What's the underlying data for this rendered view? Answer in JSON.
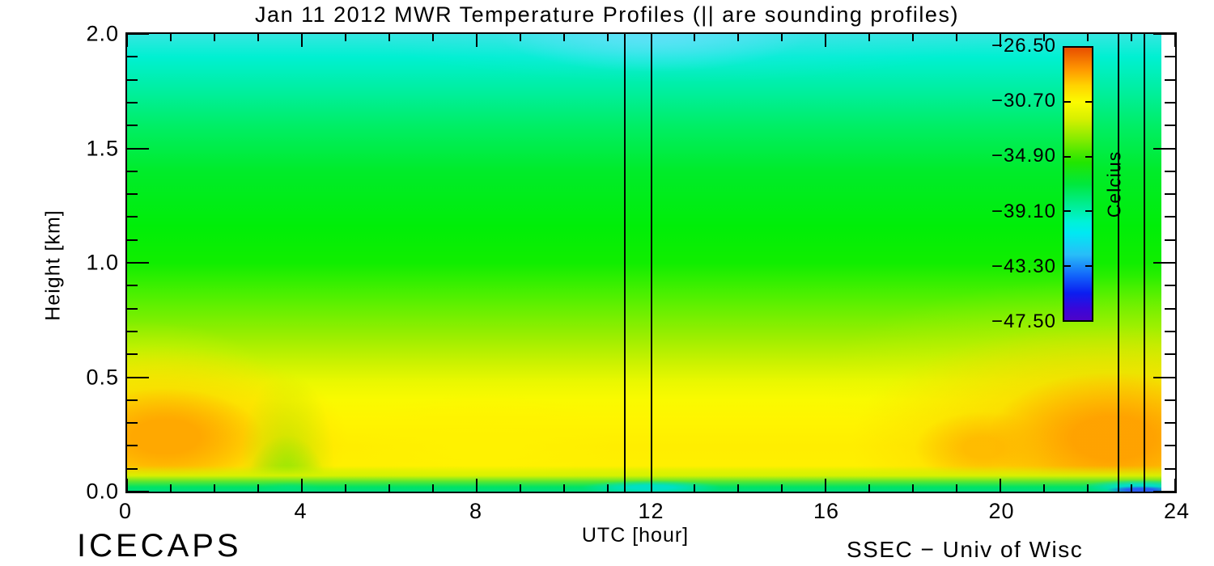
{
  "header": {
    "title": "Jan 11 2012 MWR Temperature Profiles (|| are sounding profiles)"
  },
  "footer": {
    "project": "ICECAPS",
    "credit": "SSEC − Univ of Wisc"
  },
  "chart_data": {
    "type": "heatmap",
    "title": "Jan 11 2012 MWR Temperature Profiles (|| are sounding profiles)",
    "xlabel": "UTC [hour]",
    "ylabel": "Height [km]",
    "xlim": [
      0,
      24
    ],
    "ylim": [
      0.0,
      2.0
    ],
    "xtick_values": [
      0,
      4,
      8,
      12,
      16,
      20,
      24
    ],
    "xtick_labels": [
      "0",
      "4",
      "8",
      "12",
      "16",
      "20",
      "24"
    ],
    "x_minor_step_hours": 1,
    "ytick_values": [
      0.0,
      0.5,
      1.0,
      1.5,
      2.0
    ],
    "ytick_labels": [
      "0.0",
      "0.5",
      "1.0",
      "1.5",
      "2.0"
    ],
    "y_minor_step_km": 0.1,
    "grid_on": false,
    "legend_position": "colorbar-right-inside",
    "colorbar": {
      "unit_label": "Celcius",
      "tick_labels": [
        "−26.50",
        "−30.70",
        "−34.90",
        "−39.10",
        "−43.30",
        "−47.50"
      ],
      "tick_values": [
        -26.5,
        -30.7,
        -34.9,
        -39.1,
        -43.3,
        -47.5
      ],
      "gradient_stops": [
        [
          "#E84E00",
          0
        ],
        [
          "#FF9800",
          8
        ],
        [
          "#FFD400",
          14
        ],
        [
          "#FBFB00",
          20
        ],
        [
          "#D8F000",
          26
        ],
        [
          "#8CEC00",
          33
        ],
        [
          "#22E600",
          42
        ],
        [
          "#00E83C",
          50
        ],
        [
          "#00EE96",
          58
        ],
        [
          "#00F2D8",
          64
        ],
        [
          "#00E9F2",
          68
        ],
        [
          "#28BDF8",
          76
        ],
        [
          "#1160FA",
          84
        ],
        [
          "#0B1EF0",
          90
        ],
        [
          "#3A06D8",
          96
        ],
        [
          "#4E04C8",
          100
        ]
      ]
    },
    "sounding_lines_utc": [
      11.4,
      12.0,
      22.7,
      23.3
    ],
    "data_end_utc": 23.65,
    "grid": {
      "hours_utc": [
        0,
        2,
        4,
        6,
        8,
        10,
        12,
        14,
        16,
        18,
        20,
        22,
        23.5
      ],
      "heights_km": [
        0.0,
        0.1,
        0.25,
        0.5,
        0.75,
        1.0,
        1.5,
        2.0
      ],
      "temps_c": [
        [
          -33.0,
          -35.5,
          -36.0,
          -35.5,
          -35.5,
          -35.5,
          -38.5,
          -37.5,
          -35.5,
          -35.5,
          -35.5,
          -36.0,
          -39.5
        ],
        [
          -29.5,
          -30.0,
          -31.5,
          -31.0,
          -30.5,
          -31.0,
          -31.5,
          -31.0,
          -31.0,
          -30.5,
          -29.5,
          -28.5,
          -28.5
        ],
        [
          -29.0,
          -29.5,
          -30.5,
          -30.5,
          -30.0,
          -30.5,
          -30.5,
          -30.5,
          -30.5,
          -30.0,
          -29.0,
          -28.5,
          -28.0
        ],
        [
          -31.5,
          -32.0,
          -32.5,
          -32.5,
          -32.5,
          -32.5,
          -32.5,
          -32.5,
          -32.0,
          -31.5,
          -31.0,
          -30.0,
          -30.0
        ],
        [
          -33.5,
          -33.5,
          -33.5,
          -33.5,
          -33.5,
          -33.5,
          -33.5,
          -33.5,
          -33.5,
          -33.0,
          -32.5,
          -32.0,
          -32.0
        ],
        [
          -35.3,
          -35.3,
          -35.3,
          -35.3,
          -35.3,
          -35.3,
          -35.5,
          -35.3,
          -35.3,
          -35.0,
          -34.8,
          -34.5,
          -34.5
        ],
        [
          -37.8,
          -37.8,
          -37.8,
          -37.8,
          -37.8,
          -38.0,
          -38.2,
          -38.0,
          -37.8,
          -37.8,
          -37.5,
          -37.5,
          -37.5
        ],
        [
          -39.3,
          -39.3,
          -39.3,
          -39.3,
          -39.5,
          -39.8,
          -40.2,
          -40.0,
          -39.5,
          -39.3,
          -39.3,
          -39.3,
          -39.3
        ]
      ]
    }
  }
}
